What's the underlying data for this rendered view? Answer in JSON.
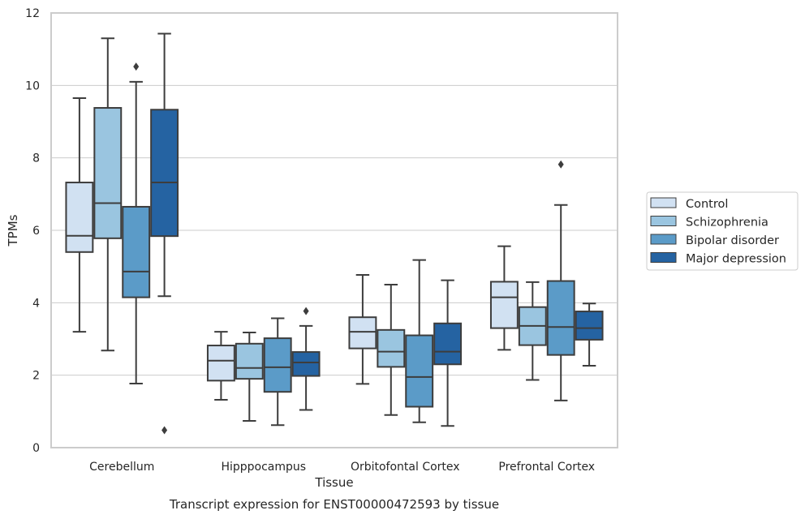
{
  "chart_data": {
    "type": "boxplot",
    "title": "",
    "caption": "Transcript expression for ENST00000472593 by tissue",
    "xlabel": "Tissue",
    "ylabel": "TPMs",
    "ylim": [
      0,
      12
    ],
    "yticks": [
      0,
      2,
      4,
      6,
      8,
      10,
      12
    ],
    "grid": true,
    "legend_position": "right",
    "categories": [
      "Cerebellum",
      "Hipppocampus",
      "Orbitofontal Cortex",
      "Prefrontal Cortex"
    ],
    "series": [
      {
        "name": "Control",
        "color": "#d1e1f2",
        "boxes": [
          {
            "whisker_low": 3.2,
            "q1": 5.4,
            "median": 5.85,
            "q3": 7.32,
            "whisker_high": 9.65,
            "outliers": []
          },
          {
            "whisker_low": 1.32,
            "q1": 1.85,
            "median": 2.4,
            "q3": 2.82,
            "whisker_high": 3.2,
            "outliers": []
          },
          {
            "whisker_low": 1.76,
            "q1": 2.74,
            "median": 3.2,
            "q3": 3.6,
            "whisker_high": 4.77,
            "outliers": []
          },
          {
            "whisker_low": 2.7,
            "q1": 3.3,
            "median": 4.15,
            "q3": 4.58,
            "whisker_high": 5.56,
            "outliers": []
          }
        ]
      },
      {
        "name": "Schizophrenia",
        "color": "#9ac5e0",
        "boxes": [
          {
            "whisker_low": 2.68,
            "q1": 5.78,
            "median": 6.75,
            "q3": 9.38,
            "whisker_high": 11.3,
            "outliers": []
          },
          {
            "whisker_low": 0.74,
            "q1": 1.9,
            "median": 2.2,
            "q3": 2.87,
            "whisker_high": 3.18,
            "outliers": []
          },
          {
            "whisker_low": 0.9,
            "q1": 2.23,
            "median": 2.65,
            "q3": 3.25,
            "whisker_high": 4.5,
            "outliers": []
          },
          {
            "whisker_low": 1.87,
            "q1": 2.83,
            "median": 3.36,
            "q3": 3.88,
            "whisker_high": 4.57,
            "outliers": []
          }
        ]
      },
      {
        "name": "Bipolar disorder",
        "color": "#5b9bc8",
        "boxes": [
          {
            "whisker_low": 1.77,
            "q1": 4.15,
            "median": 4.86,
            "q3": 6.65,
            "whisker_high": 10.1,
            "outliers": [
              10.52
            ]
          },
          {
            "whisker_low": 0.62,
            "q1": 1.54,
            "median": 2.22,
            "q3": 3.02,
            "whisker_high": 3.57,
            "outliers": []
          },
          {
            "whisker_low": 0.7,
            "q1": 1.13,
            "median": 1.95,
            "q3": 3.1,
            "whisker_high": 5.18,
            "outliers": []
          },
          {
            "whisker_low": 1.3,
            "q1": 2.56,
            "median": 3.33,
            "q3": 4.6,
            "whisker_high": 6.7,
            "outliers": [
              7.82
            ]
          }
        ]
      },
      {
        "name": "Major depression",
        "color": "#2563a2",
        "boxes": [
          {
            "whisker_low": 4.18,
            "q1": 5.84,
            "median": 7.32,
            "q3": 9.33,
            "whisker_high": 11.43,
            "outliers": [
              0.48
            ]
          },
          {
            "whisker_low": 1.04,
            "q1": 1.98,
            "median": 2.35,
            "q3": 2.64,
            "whisker_high": 3.36,
            "outliers": [
              3.77
            ]
          },
          {
            "whisker_low": 0.6,
            "q1": 2.3,
            "median": 2.65,
            "q3": 3.43,
            "whisker_high": 4.62,
            "outliers": []
          },
          {
            "whisker_low": 2.26,
            "q1": 2.98,
            "median": 3.3,
            "q3": 3.76,
            "whisker_high": 3.98,
            "outliers": []
          }
        ]
      }
    ]
  }
}
